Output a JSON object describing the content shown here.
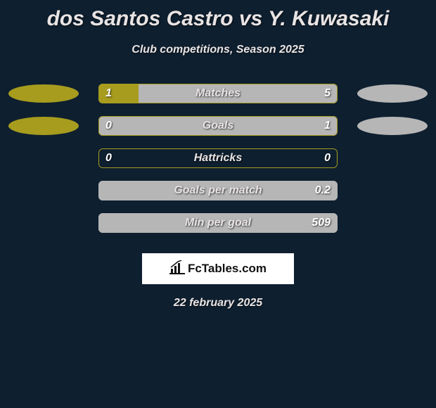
{
  "title": "dos Santos Castro vs Y. Kuwasaki",
  "subtitle": "Club competitions, Season 2025",
  "date": "22 february 2025",
  "logo_text": "FcTables.com",
  "colors": {
    "background": "#0e1f2f",
    "left_primary": "#a79c1e",
    "right_primary": "#b6b6b7",
    "border_olive": "#a79c1e",
    "border_grey": "#b6b6b7",
    "text": "#e9e4e4",
    "logo_bg": "#ffffff"
  },
  "metrics": [
    {
      "label": "Matches",
      "left_value": "1",
      "right_value": "5",
      "left_pct": 16.7,
      "right_pct": 83.3,
      "left_color": "#a79c1e",
      "right_color": "#b6b6b7",
      "border_color": "#a79c1e",
      "show_left_oval": true,
      "show_right_oval": true
    },
    {
      "label": "Goals",
      "left_value": "0",
      "right_value": "1",
      "left_pct": 0,
      "right_pct": 100,
      "left_color": "#a79c1e",
      "right_color": "#b6b6b7",
      "border_color": "#a79c1e",
      "show_left_oval": true,
      "show_right_oval": true
    },
    {
      "label": "Hattricks",
      "left_value": "0",
      "right_value": "0",
      "left_pct": 0,
      "right_pct": 0,
      "left_color": "#a79c1e",
      "right_color": "#b6b6b7",
      "border_color": "#a79c1e",
      "show_left_oval": false,
      "show_right_oval": false
    },
    {
      "label": "Goals per match",
      "left_value": "",
      "right_value": "0.2",
      "left_pct": 0,
      "right_pct": 100,
      "left_color": "#a79c1e",
      "right_color": "#b6b6b7",
      "border_color": "#b6b6b7",
      "show_left_oval": false,
      "show_right_oval": false
    },
    {
      "label": "Min per goal",
      "left_value": "",
      "right_value": "509",
      "left_pct": 0,
      "right_pct": 100,
      "left_color": "#a79c1e",
      "right_color": "#b6b6b7",
      "border_color": "#b6b6b7",
      "show_left_oval": false,
      "show_right_oval": false
    }
  ]
}
